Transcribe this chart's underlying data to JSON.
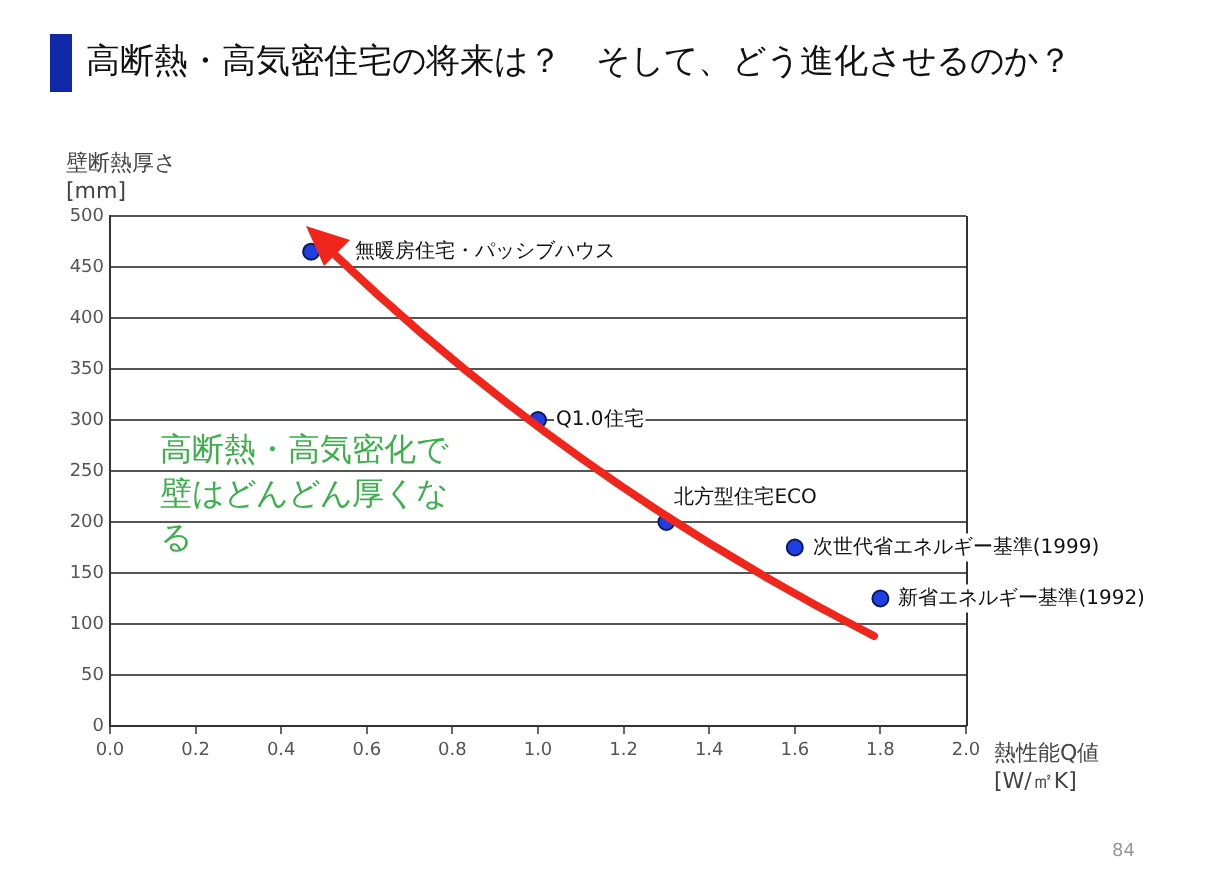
{
  "chart_data": {
    "type": "scatter",
    "title": "高断熱・高気密住宅の将来は？　そして、どう進化させるのか？",
    "ylabel": "壁断熱厚さ\n[mm]",
    "xlabel": "熱性能Q値\n[W/㎡K]",
    "x": [
      0.47,
      1.0,
      1.3,
      1.6,
      1.8
    ],
    "series": [
      {
        "color": "#1f3fe0",
        "values": [
          465,
          300,
          200,
          175,
          125
        ]
      }
    ],
    "xlim": [
      0,
      2
    ],
    "xticks": [
      {
        "value": 0,
        "label": "0.0"
      },
      0.2,
      0.4,
      0.6,
      0.8,
      {
        "value": 1,
        "label": "1.0"
      },
      1.2,
      1.4,
      1.6,
      1.8,
      {
        "value": 2,
        "label": "2.0"
      }
    ],
    "ylim": [
      0,
      500
    ],
    "yticks": [
      0,
      50,
      100,
      150,
      200,
      250,
      300,
      350,
      400,
      450,
      500
    ],
    "grid": "y",
    "legend": false,
    "marker": "circle",
    "annotations": [
      "高断熱・高気密化で壁はどんどん厚くなる",
      {
        "text": "無暖房住宅・パッシブハウス",
        "x": 0.47,
        "y": 465
      },
      {
        "text": "Q1.0住宅",
        "x": 1.0,
        "y": 300
      },
      {
        "text": "北方型住宅ECO",
        "x": 1.3,
        "y": 200
      },
      {
        "text": "次世代省エネルギー基準(1999)",
        "x": 1.6,
        "y": 175
      },
      {
        "text": "新省エネルギー基準(1992)",
        "x": 1.8,
        "y": 125
      },
      "84"
    ]
  }
}
